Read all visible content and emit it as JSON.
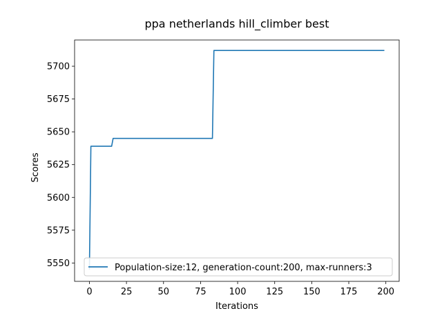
{
  "chart_data": {
    "type": "line",
    "title": "ppa netherlands hill_climber best",
    "xlabel": "Iterations",
    "ylabel": "Scores",
    "xlim": [
      -10,
      209
    ],
    "ylim": [
      5536,
      5720
    ],
    "xticks": [
      0,
      25,
      50,
      75,
      100,
      125,
      150,
      175,
      200
    ],
    "yticks": [
      5550,
      5575,
      5600,
      5625,
      5650,
      5675,
      5700
    ],
    "grid": false,
    "legend_position": "lower right",
    "series": [
      {
        "name": "Population-size:12, generation-count:200, max-runners:3",
        "color": "#1f77b4",
        "x": [
          0,
          1,
          15,
          16,
          83,
          84,
          199
        ],
        "y": [
          5545,
          5639,
          5639,
          5645,
          5645,
          5712,
          5712
        ]
      }
    ]
  }
}
